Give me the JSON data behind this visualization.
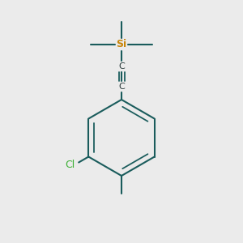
{
  "background_color": "#ebebeb",
  "bond_color": "#1a5c5c",
  "si_color": "#c8860a",
  "cl_color": "#3cb034",
  "c_color": "#2a3a3a",
  "line_width": 1.5,
  "si_label": "Si",
  "c_label": "C",
  "cl_label": "Cl",
  "font_size_si": 9,
  "font_size_c": 8,
  "font_size_cl": 9
}
